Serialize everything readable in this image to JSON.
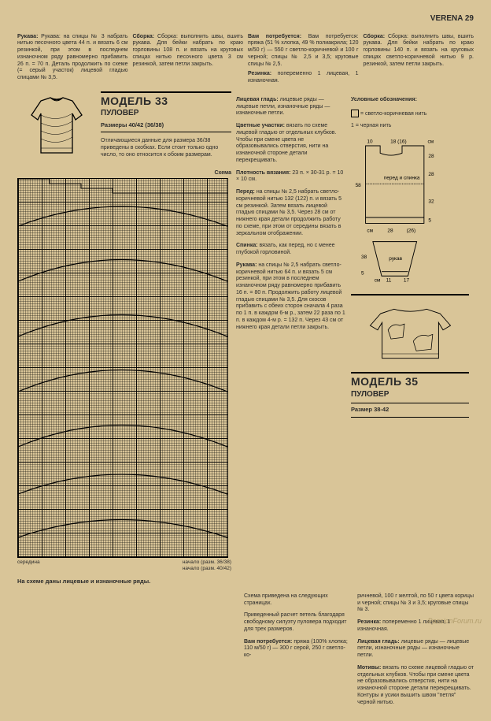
{
  "header": "VERENA 29",
  "top": {
    "col1": "Рукава: на спицы № 3 набрать нитью песочного цвета 44 п. и вязать 6 см резинкой, при этом в последнем изнаночном ряду равномерно прибавить 26 п. = 70 п. Деталь продолжить по схеме (= серый участок) лицевой гладью спицами № 3,5.",
    "col2": "Сборка: выполнить швы, вшить рукава. Для бейки набрать по краю горловины 108 п. и вязать на круговых спицах нитью песочного цвета 3 см резинкой, затем петли закрыть.",
    "col3": "Вам потребуется: пряжа (51 % хлопка, 49 % полиакрила; 120 м/50 г) — 550 г светло-коричневой и 100 г черной; спицы № 2,5 и 3,5; круговые спицы № 2,5.",
    "col3b_t": "Резинка:",
    "col3b": " попеременно 1 лицевая, 1 изнаночная.",
    "col4": "Сборка: выполнить швы, вшить рукава. Для бейки набрать по краю горловины 140 п. и вязать на круговых спицах светло-коричневой нитью 9 р. резинкой, затем петли закрыть."
  },
  "model33": {
    "title": "МОДЕЛЬ 33",
    "sub": "ПУЛОВЕР",
    "size": "Размеры 40/42 (36/38)",
    "intro": "Отличающиеся данные для размера 36/38 приведены в скобках. Если стоит только одно число, то оно относится к обоим размерам.",
    "scheme_label": "Схема",
    "col3_blocks": [
      {
        "t": "Лицевая гладь:",
        "b": " лицевые ряды — лицевые петли, изнаночные ряды — изнаночные петли."
      },
      {
        "t": "Цветные участки:",
        "b": " вязать по схеме лицевой гладью от отдельных клубков. Чтобы при смене цвета не образовывались отверстия, нити на изнаночной стороне детали перекрещивать."
      },
      {
        "t": "Плотность вязания:",
        "b": " 23 п. × 30-31 р. = 10 × 10 см."
      },
      {
        "t": "Перед:",
        "b": " на спицы № 2,5 набрать светло-коричневой нитью 132 (122) п. и вязать 5 см резинкой. Затем вязать лицевой гладью спицами № 3,5. Через 28 см от нижнего края детали продолжить работу по схеме, при этом от середины вязать в зеркальном отображении."
      },
      {
        "t": "Спинка:",
        "b": " вязать, как перед, но с менее глубокой горловиной."
      },
      {
        "t": "Рукава:",
        "b": " на спицы № 2,5 набрать светло-коричневой нитью 64 п. и вязать 5 см резинкой, при этом в последнем изнаночном ряду равномерно прибавить 16 п. = 80 п. Продолжить работу лицевой гладью спицами № 3,5. Для скосов прибавить с обеих сторон сначала 4 раза по 1 п. в каждом 6-м р., затем 22 раза по 1 п. в каждом 4-м р. = 132 п. Через 43 см от нижнего края детали петли закрыть."
      }
    ],
    "legend_title": "Условные обозначения:",
    "legend1": "= светло-коричневая нить",
    "legend2": "= черная нить",
    "pattern": {
      "front_back": "перед и спинка",
      "sleeve": "рукав",
      "top_dims": [
        "10",
        "18  (16)",
        "см"
      ],
      "right_dims_fb": [
        "28",
        "28",
        "32",
        "5"
      ],
      "left_fb": "58",
      "bottom_fb": [
        "см",
        "28",
        "(26)"
      ],
      "right_dims_sl": [
        "38",
        "5"
      ],
      "bottom_sl_left": [
        "см",
        "11"
      ],
      "bottom_sl_right": [
        "17"
      ],
      "cm_lbl": "см"
    },
    "grid_caption_left": "середина",
    "grid_caption_r1": "начало (разм. 36/38)",
    "grid_caption_r2": "начало (разм. 40/42)",
    "note": "На схеме даны лицевые и изнаночные ряды."
  },
  "model35": {
    "title": "МОДЕЛЬ 35",
    "sub": "ПУЛОВЕР",
    "size": "Размер 38-42",
    "p1": "Схема приведена на следующих страницах.",
    "p2": "Приведенный расчет петель благодаря свободному силуэту пуловера подходит для трех размеров.",
    "p3_t": "Вам потребуется:",
    "p3": " пряжа (100% хлопка; 110 м/50 г) — 300 г серой, 250 г светло-ко-",
    "col4a": "ричневой, 100 г желтой, по 50 г цвета корицы и черной; спицы № 3 и 3,5; круговые спицы № 3.",
    "col4b_t": "Резинка:",
    "col4b": " попеременно 1 лицевая, 1 изнаночная.",
    "col4c_t": "Лицевая гладь:",
    "col4c": " лицевые ряды — лицевые петли, изнаночные ряды — изнаночные петли.",
    "col4d_t": "Мотивы:",
    "col4d": " вязать по схеме лицевой гладью от отдельных клубков. Чтобы при смене цвета не образовывались отверстия, нити на изнаночной стороне детали перекрещивать. Контуры и усики вышить швом \"петля\" черной нитью."
  },
  "watermark": "PassionForum.ru",
  "colors": {
    "ink": "#2a2a2a",
    "bg": "#d9c598"
  }
}
